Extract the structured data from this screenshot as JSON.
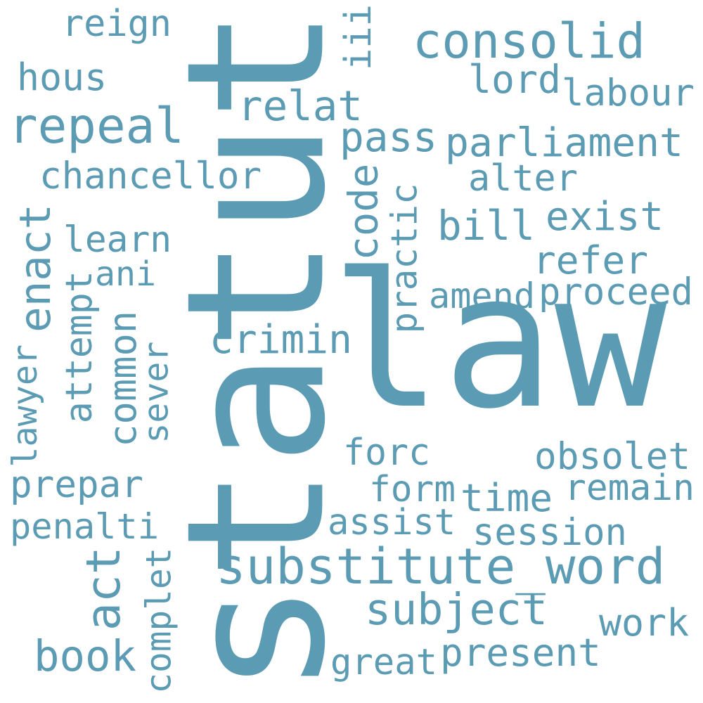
{
  "wordcloud": {
    "color": "#5b9bb3",
    "background": "#ffffff",
    "words": [
      {
        "text": "statut",
        "rotate": -90
      },
      {
        "text": "law",
        "rotate": 0
      },
      {
        "text": "substitute_word",
        "rotate": 0
      },
      {
        "text": "consolid",
        "rotate": 0
      },
      {
        "text": "repeal",
        "rotate": 0
      },
      {
        "text": "enact",
        "rotate": -90
      },
      {
        "text": "act",
        "rotate": -90
      },
      {
        "text": "subject",
        "rotate": 0
      },
      {
        "text": "relat",
        "rotate": 0
      },
      {
        "text": "parliament",
        "rotate": 0
      },
      {
        "text": "pass",
        "rotate": 0
      },
      {
        "text": "chancellor",
        "rotate": 0
      },
      {
        "text": "lord",
        "rotate": 0
      },
      {
        "text": "labour",
        "rotate": 0
      },
      {
        "text": "reign",
        "rotate": 0
      },
      {
        "text": "hous",
        "rotate": 0
      },
      {
        "text": "iii",
        "rotate": -90
      },
      {
        "text": "alter",
        "rotate": 0
      },
      {
        "text": "bill",
        "rotate": 0
      },
      {
        "text": "exist",
        "rotate": 0
      },
      {
        "text": "code",
        "rotate": -90
      },
      {
        "text": "practic",
        "rotate": -90
      },
      {
        "text": "learn",
        "rotate": 0
      },
      {
        "text": "ani",
        "rotate": 0
      },
      {
        "text": "refer",
        "rotate": 0
      },
      {
        "text": "amend",
        "rotate": 0
      },
      {
        "text": "proceed",
        "rotate": 0
      },
      {
        "text": "crimin",
        "rotate": 0
      },
      {
        "text": "attempt",
        "rotate": -90
      },
      {
        "text": "common",
        "rotate": -90
      },
      {
        "text": "sever",
        "rotate": -90
      },
      {
        "text": "lawyer",
        "rotate": -90
      },
      {
        "text": "forc",
        "rotate": 0
      },
      {
        "text": "obsolet",
        "rotate": 0
      },
      {
        "text": "prepar",
        "rotate": 0
      },
      {
        "text": "form",
        "rotate": 0
      },
      {
        "text": "time",
        "rotate": 0
      },
      {
        "text": "remain",
        "rotate": 0
      },
      {
        "text": "penalti",
        "rotate": 0
      },
      {
        "text": "assist",
        "rotate": 0
      },
      {
        "text": "session",
        "rotate": 0
      },
      {
        "text": "complet",
        "rotate": -90
      },
      {
        "text": "work",
        "rotate": 0
      },
      {
        "text": "book",
        "rotate": 0
      },
      {
        "text": "great",
        "rotate": 0
      },
      {
        "text": "present",
        "rotate": 0
      }
    ]
  }
}
